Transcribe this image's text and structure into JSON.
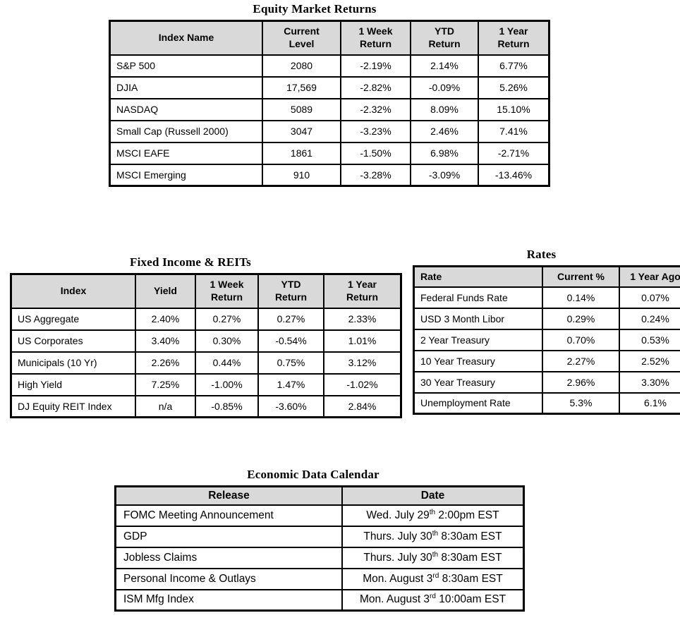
{
  "style": {
    "header_bg": "#d9d9d9",
    "border_color": "#000000",
    "text_color": "#000000",
    "page_bg": "#ffffff"
  },
  "tables": {
    "equity": {
      "title": "Equity Market Returns",
      "headers": [
        "Index Name",
        "Current\nLevel",
        "1 Week\nReturn",
        "YTD\nReturn",
        "1 Year\nReturn"
      ],
      "rows": [
        [
          "S&P 500",
          "2080",
          "-2.19%",
          "2.14%",
          "6.77%"
        ],
        [
          "DJIA",
          "17,569",
          "-2.82%",
          "-0.09%",
          "5.26%"
        ],
        [
          "NASDAQ",
          "5089",
          "-2.32%",
          "8.09%",
          "15.10%"
        ],
        [
          "Small Cap (Russell 2000)",
          "3047",
          "-3.23%",
          "2.46%",
          "7.41%"
        ],
        [
          "MSCI EAFE",
          "1861",
          "-1.50%",
          "6.98%",
          "-2.71%"
        ],
        [
          "MSCI Emerging",
          "910",
          "-3.28%",
          "-3.09%",
          "-13.46%"
        ]
      ]
    },
    "fixed_income": {
      "title": "Fixed Income & REITs",
      "headers": [
        "Index",
        "Yield",
        "1 Week\nReturn",
        "YTD\nReturn",
        "1 Year\nReturn"
      ],
      "rows": [
        [
          "US Aggregate",
          "2.40%",
          "0.27%",
          "0.27%",
          "2.33%"
        ],
        [
          "US Corporates",
          "3.40%",
          "0.30%",
          "-0.54%",
          "1.01%"
        ],
        [
          "Municipals (10 Yr)",
          "2.26%",
          "0.44%",
          "0.75%",
          "3.12%"
        ],
        [
          "High Yield",
          "7.25%",
          "-1.00%",
          "1.47%",
          "-1.02%"
        ],
        [
          "DJ Equity REIT Index",
          "n/a",
          "-0.85%",
          "-3.60%",
          "2.84%"
        ]
      ]
    },
    "rates": {
      "title": "Rates",
      "headers": [
        "Rate",
        "Current %",
        "1 Year Ago"
      ],
      "rows": [
        [
          "Federal Funds Rate",
          "0.14%",
          "0.07%"
        ],
        [
          "USD 3 Month Libor",
          "0.29%",
          "0.24%"
        ],
        [
          "2 Year Treasury",
          "0.70%",
          "0.53%"
        ],
        [
          "10 Year Treasury",
          "2.27%",
          "2.52%"
        ],
        [
          "30 Year Treasury",
          "2.96%",
          "3.30%"
        ],
        [
          "Unemployment Rate",
          "5.3%",
          "6.1%"
        ]
      ]
    },
    "calendar": {
      "title": "Economic Data Calendar",
      "headers": [
        "Release",
        "Date"
      ],
      "rows": [
        [
          "FOMC Meeting Announcement",
          {
            "parts": [
              {
                "t": "Wed. July 29"
              },
              {
                "t": "th",
                "sup": true
              },
              {
                "t": " 2:00pm EST"
              }
            ]
          }
        ],
        [
          "GDP",
          {
            "parts": [
              {
                "t": "Thurs. July 30"
              },
              {
                "t": "th",
                "sup": true
              },
              {
                "t": " 8:30am EST"
              }
            ]
          }
        ],
        [
          "Jobless Claims",
          {
            "parts": [
              {
                "t": "Thurs. July 30"
              },
              {
                "t": "th",
                "sup": true
              },
              {
                "t": " 8:30am EST"
              }
            ]
          }
        ],
        [
          "Personal Income & Outlays",
          {
            "parts": [
              {
                "t": "Mon. August 3"
              },
              {
                "t": "rd",
                "sup": true
              },
              {
                "t": " 8:30am EST"
              }
            ]
          }
        ],
        [
          "ISM Mfg Index",
          {
            "parts": [
              {
                "t": "Mon. August 3"
              },
              {
                "t": "rd",
                "sup": true
              },
              {
                "t": " 10:00am EST"
              }
            ]
          }
        ]
      ]
    }
  }
}
